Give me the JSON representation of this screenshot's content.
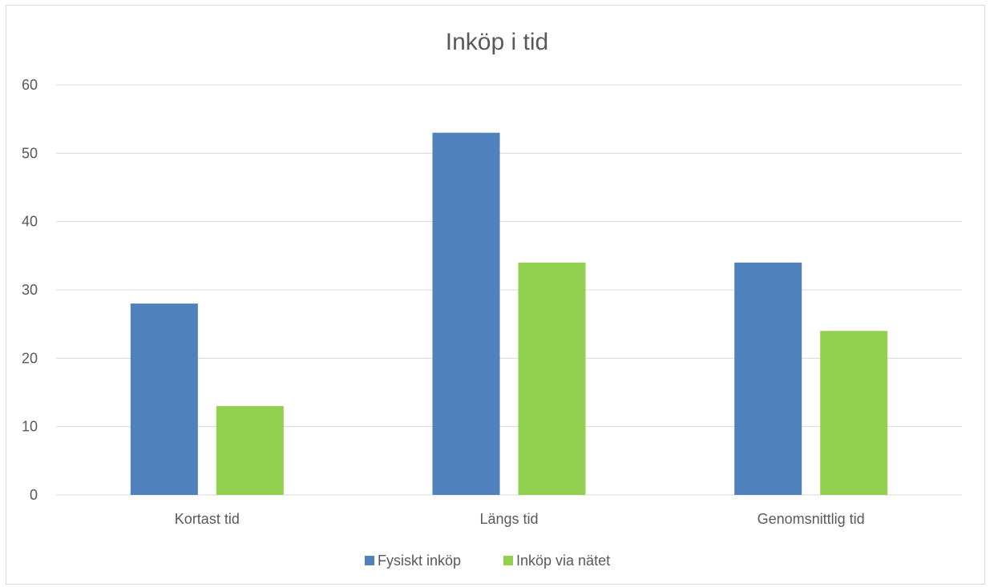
{
  "chart_data": {
    "type": "bar",
    "title": "Inköp i tid",
    "xlabel": "",
    "ylabel": "",
    "categories": [
      "Kortast tid",
      "Längs tid",
      "Genomsnittlig tid"
    ],
    "series": [
      {
        "name": "Fysiskt inköp",
        "values": [
          28,
          53,
          34
        ],
        "color": "#4f81bd"
      },
      {
        "name": "Inköp via nätet",
        "values": [
          13,
          34,
          24
        ],
        "color": "#92d050"
      }
    ],
    "ylim": [
      0,
      60
    ],
    "yticks": [
      0,
      10,
      20,
      30,
      40,
      50,
      60
    ],
    "grid": true,
    "legend_position": "bottom"
  }
}
